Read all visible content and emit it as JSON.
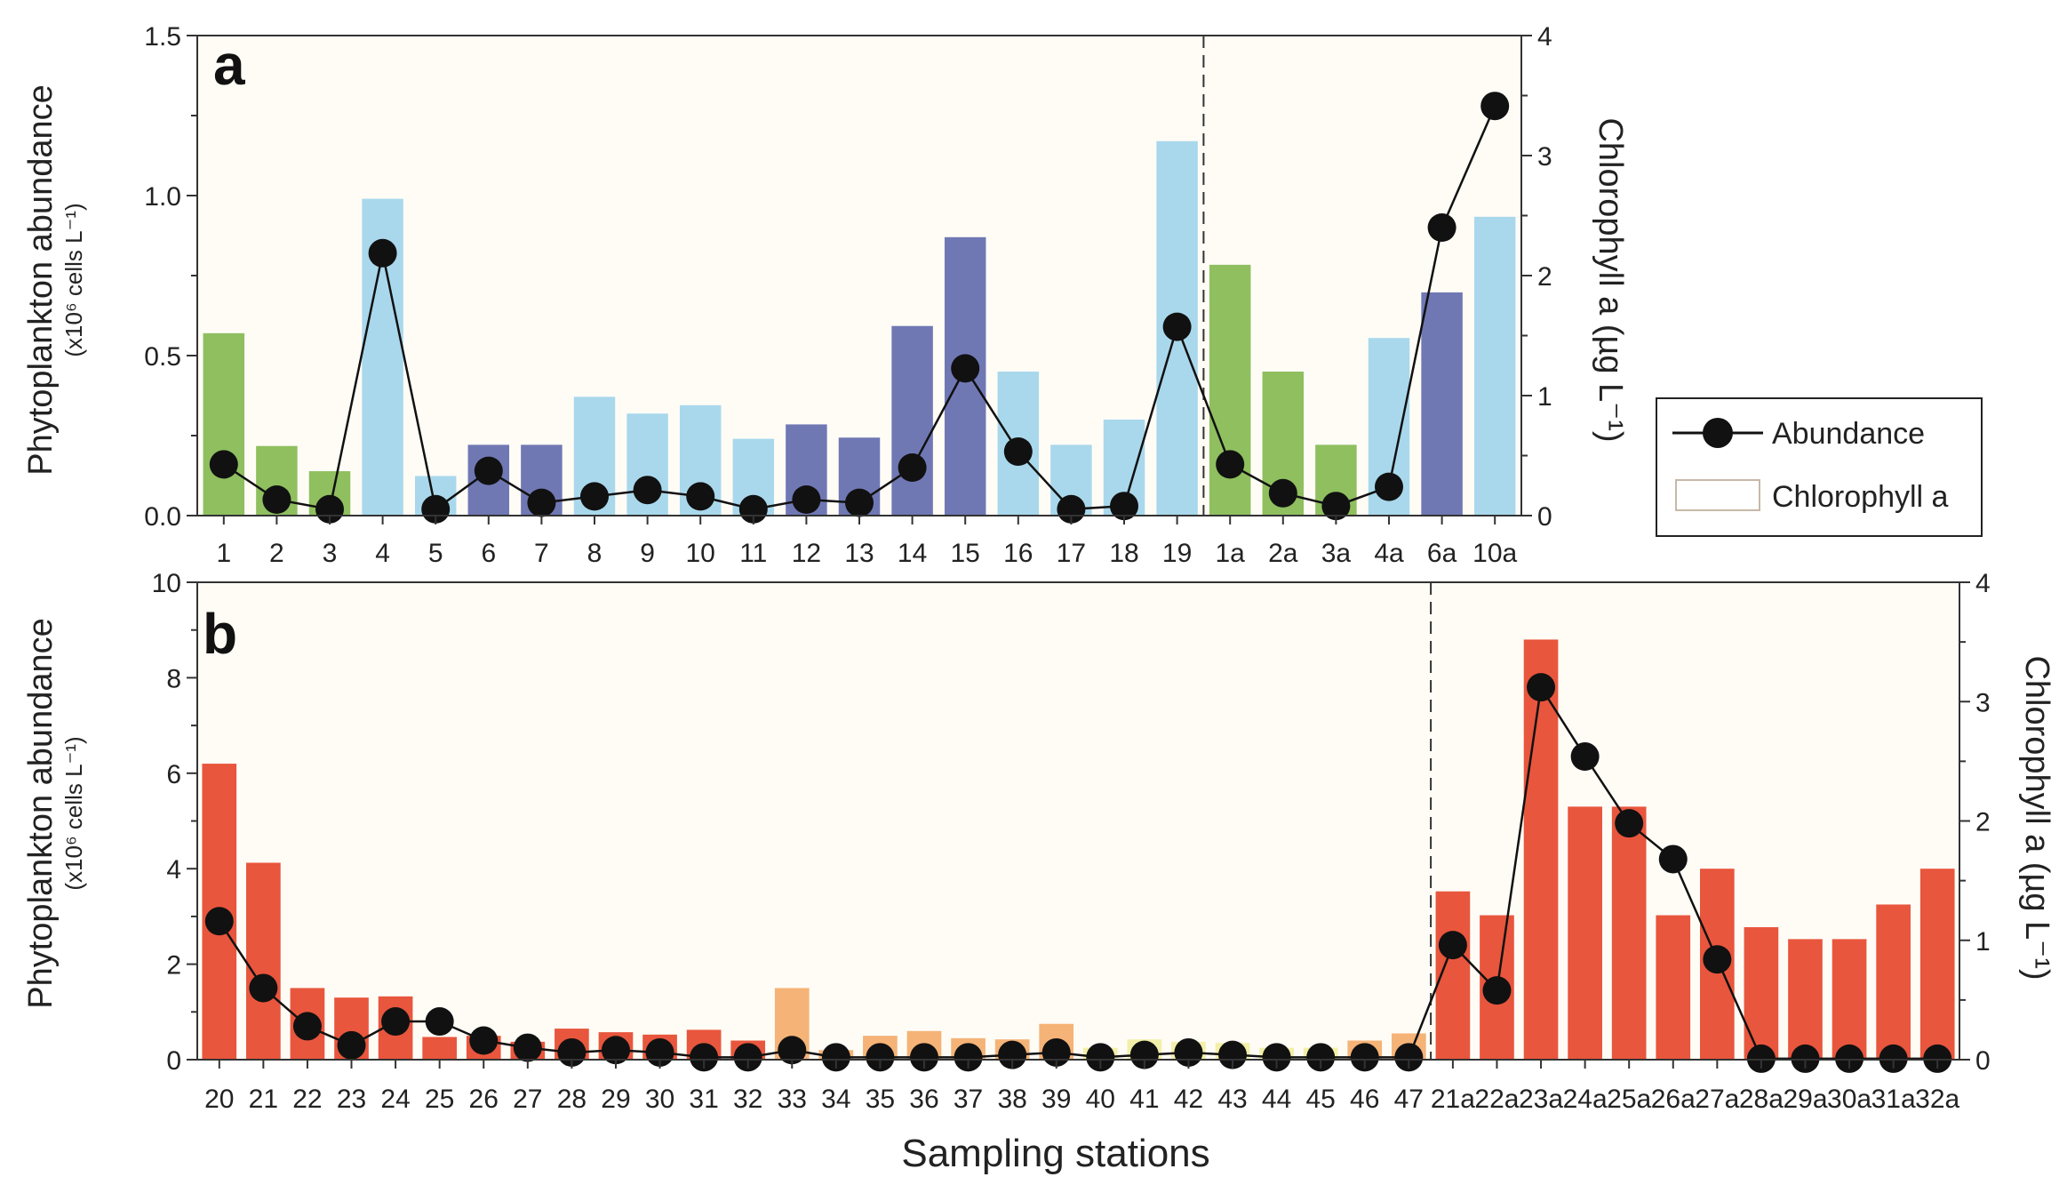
{
  "colors": {
    "panel_bg": "#fffcf6",
    "green": "#8fbf5f",
    "light_blue": "#a9d8ec",
    "dark_blue": "#7078b4",
    "red": "#e8563d",
    "orange": "#f5b377",
    "pale_yellow": "#f2f0a8",
    "marker": "#111111",
    "line": "#111111"
  },
  "chart_data": [
    {
      "type": "bar+line",
      "panel": "a",
      "categories": [
        "1",
        "2",
        "3",
        "4",
        "5",
        "6",
        "7",
        "8",
        "9",
        "10",
        "11",
        "12",
        "13",
        "14",
        "15",
        "16",
        "17",
        "18",
        "19",
        "1a",
        "2a",
        "3a",
        "4a",
        "6a",
        "10a"
      ],
      "abundance": [
        0.16,
        0.05,
        0.02,
        0.82,
        0.02,
        0.14,
        0.04,
        0.06,
        0.08,
        0.06,
        0.02,
        0.05,
        0.04,
        0.15,
        0.46,
        0.2,
        0.02,
        0.03,
        0.59,
        0.16,
        0.07,
        0.03,
        0.09,
        0.9,
        1.28
      ],
      "chlorophyll": [
        1.52,
        0.58,
        0.37,
        2.64,
        0.33,
        0.59,
        0.59,
        0.99,
        0.85,
        0.92,
        0.64,
        0.76,
        0.65,
        1.58,
        2.32,
        1.2,
        0.59,
        0.8,
        3.12,
        2.09,
        1.2,
        0.59,
        1.48,
        1.86,
        2.49
      ],
      "bar_colors": [
        "green",
        "green",
        "green",
        "light_blue",
        "light_blue",
        "dark_blue",
        "dark_blue",
        "light_blue",
        "light_blue",
        "light_blue",
        "light_blue",
        "dark_blue",
        "dark_blue",
        "dark_blue",
        "dark_blue",
        "light_blue",
        "light_blue",
        "light_blue",
        "light_blue",
        "green",
        "green",
        "green",
        "light_blue",
        "dark_blue",
        "light_blue"
      ],
      "divider_after": "19",
      "y_left": {
        "min": 0,
        "max": 1.5,
        "ticks": [
          "0.0",
          "0.5",
          "1.0",
          "1.5"
        ]
      },
      "y_right": {
        "min": 0,
        "max": 4,
        "ticks": [
          "0",
          "1",
          "2",
          "3",
          "4"
        ]
      },
      "ylabel": "Phytoplankton abundance",
      "ylabel_units": "(x10⁶ cells L⁻¹)",
      "y2label": "Chlorophyll a (µg L⁻¹)"
    },
    {
      "type": "bar+line",
      "panel": "b",
      "categories": [
        "20",
        "21",
        "22",
        "23",
        "24",
        "25",
        "26",
        "27",
        "28",
        "29",
        "30",
        "31",
        "32",
        "33",
        "34",
        "35",
        "36",
        "37",
        "38",
        "39",
        "40",
        "41",
        "42",
        "43",
        "44",
        "45",
        "46",
        "47",
        "21a",
        "22a",
        "23a",
        "24a",
        "25a",
        "26a",
        "27a",
        "28a",
        "29a",
        "30a",
        "31a",
        "32a"
      ],
      "abundance": [
        2.9,
        1.5,
        0.7,
        0.3,
        0.8,
        0.8,
        0.4,
        0.25,
        0.15,
        0.2,
        0.15,
        0.05,
        0.05,
        0.2,
        0.05,
        0.05,
        0.05,
        0.05,
        0.1,
        0.15,
        0.05,
        0.1,
        0.15,
        0.1,
        0.05,
        0.05,
        0.05,
        0.05,
        2.4,
        1.45,
        7.8,
        6.35,
        4.95,
        4.2,
        2.1,
        0.02,
        0.02,
        0.02,
        0.02,
        0.02
      ],
      "chlorophyll": [
        2.48,
        1.65,
        0.6,
        0.52,
        0.53,
        0.19,
        0.2,
        0.15,
        0.26,
        0.23,
        0.21,
        0.25,
        0.16,
        0.6,
        0.08,
        0.2,
        0.24,
        0.18,
        0.17,
        0.3,
        0.1,
        0.17,
        0.15,
        0.14,
        0.1,
        0.1,
        0.16,
        0.22,
        1.41,
        1.21,
        3.52,
        2.12,
        2.12,
        1.21,
        1.6,
        1.11,
        1.01,
        1.01,
        1.3,
        1.6
      ],
      "bar_colors": [
        "red",
        "red",
        "red",
        "red",
        "red",
        "red",
        "red",
        "red",
        "red",
        "red",
        "red",
        "red",
        "red",
        "orange",
        "orange",
        "orange",
        "orange",
        "orange",
        "orange",
        "orange",
        "pale_yellow",
        "pale_yellow",
        "pale_yellow",
        "pale_yellow",
        "pale_yellow",
        "pale_yellow",
        "orange",
        "orange",
        "red",
        "red",
        "red",
        "red",
        "red",
        "red",
        "red",
        "red",
        "red",
        "red",
        "red",
        "red"
      ],
      "divider_after": "47",
      "y_left": {
        "min": 0,
        "max": 10,
        "ticks": [
          "0",
          "2",
          "4",
          "6",
          "8",
          "10"
        ]
      },
      "y_right": {
        "min": 0,
        "max": 4,
        "ticks": [
          "0",
          "1",
          "2",
          "3",
          "4"
        ]
      },
      "ylabel": "Phytoplankton abundance",
      "ylabel_units": "(x10⁶ cells L⁻¹)",
      "y2label": "Chlorophyll a (µg L⁻¹)",
      "xlabel": "Sampling stations"
    }
  ],
  "legend": {
    "abundance_label": "Abundance",
    "chlorophyll_label": "Chlorophyll a"
  },
  "labels": {
    "panel_a": "a",
    "panel_b": "b",
    "x_title": "Sampling stations"
  }
}
